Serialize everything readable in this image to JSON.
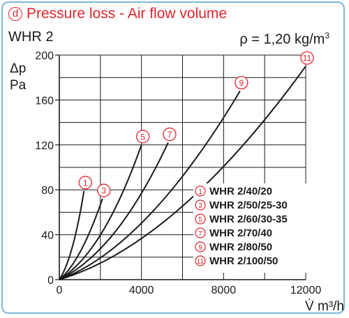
{
  "header": {
    "letter": "d",
    "title": "Pressure loss - Air flow volume"
  },
  "model": "WHR 2",
  "density": {
    "label": "ρ = 1,20 kg/m",
    "exponent": "3"
  },
  "chart_data": {
    "type": "line",
    "title": "Pressure loss - Air flow volume",
    "xlabel": "V̇ m³/h",
    "ylabel": "Δp Pa",
    "xlim": [
      0,
      12000
    ],
    "ylim": [
      0,
      200
    ],
    "x_ticks": [
      0,
      4000,
      8000,
      12000
    ],
    "y_ticks": [
      0,
      40,
      80,
      120,
      160,
      200
    ],
    "grid": true,
    "legend_position": "bottom-right",
    "series": [
      {
        "marker": "1",
        "name": "WHR 2/40/20",
        "points": [
          [
            0,
            0
          ],
          [
            500,
            14
          ],
          [
            900,
            45
          ],
          [
            1200,
            79
          ]
        ]
      },
      {
        "marker": "3",
        "name": "WHR 2/50/25-30",
        "points": [
          [
            0,
            0
          ],
          [
            800,
            12
          ],
          [
            1500,
            40
          ],
          [
            2100,
            72
          ]
        ]
      },
      {
        "marker": "5",
        "name": "WHR 2/60/30-35",
        "points": [
          [
            0,
            0
          ],
          [
            1500,
            17
          ],
          [
            2800,
            58
          ],
          [
            4000,
            120
          ]
        ]
      },
      {
        "marker": "7",
        "name": "WHR 2/70/40",
        "points": [
          [
            0,
            0
          ],
          [
            2000,
            18
          ],
          [
            3700,
            60
          ],
          [
            5300,
            122
          ]
        ]
      },
      {
        "marker": "9",
        "name": "WHR 2/80/50",
        "points": [
          [
            0,
            0
          ],
          [
            3000,
            20
          ],
          [
            6000,
            82
          ],
          [
            8800,
            168
          ]
        ]
      },
      {
        "marker": "11",
        "name": "WHR 2/100/50",
        "points": [
          [
            0,
            0
          ],
          [
            4000,
            22
          ],
          [
            8000,
            89
          ],
          [
            12000,
            190
          ]
        ]
      }
    ]
  }
}
